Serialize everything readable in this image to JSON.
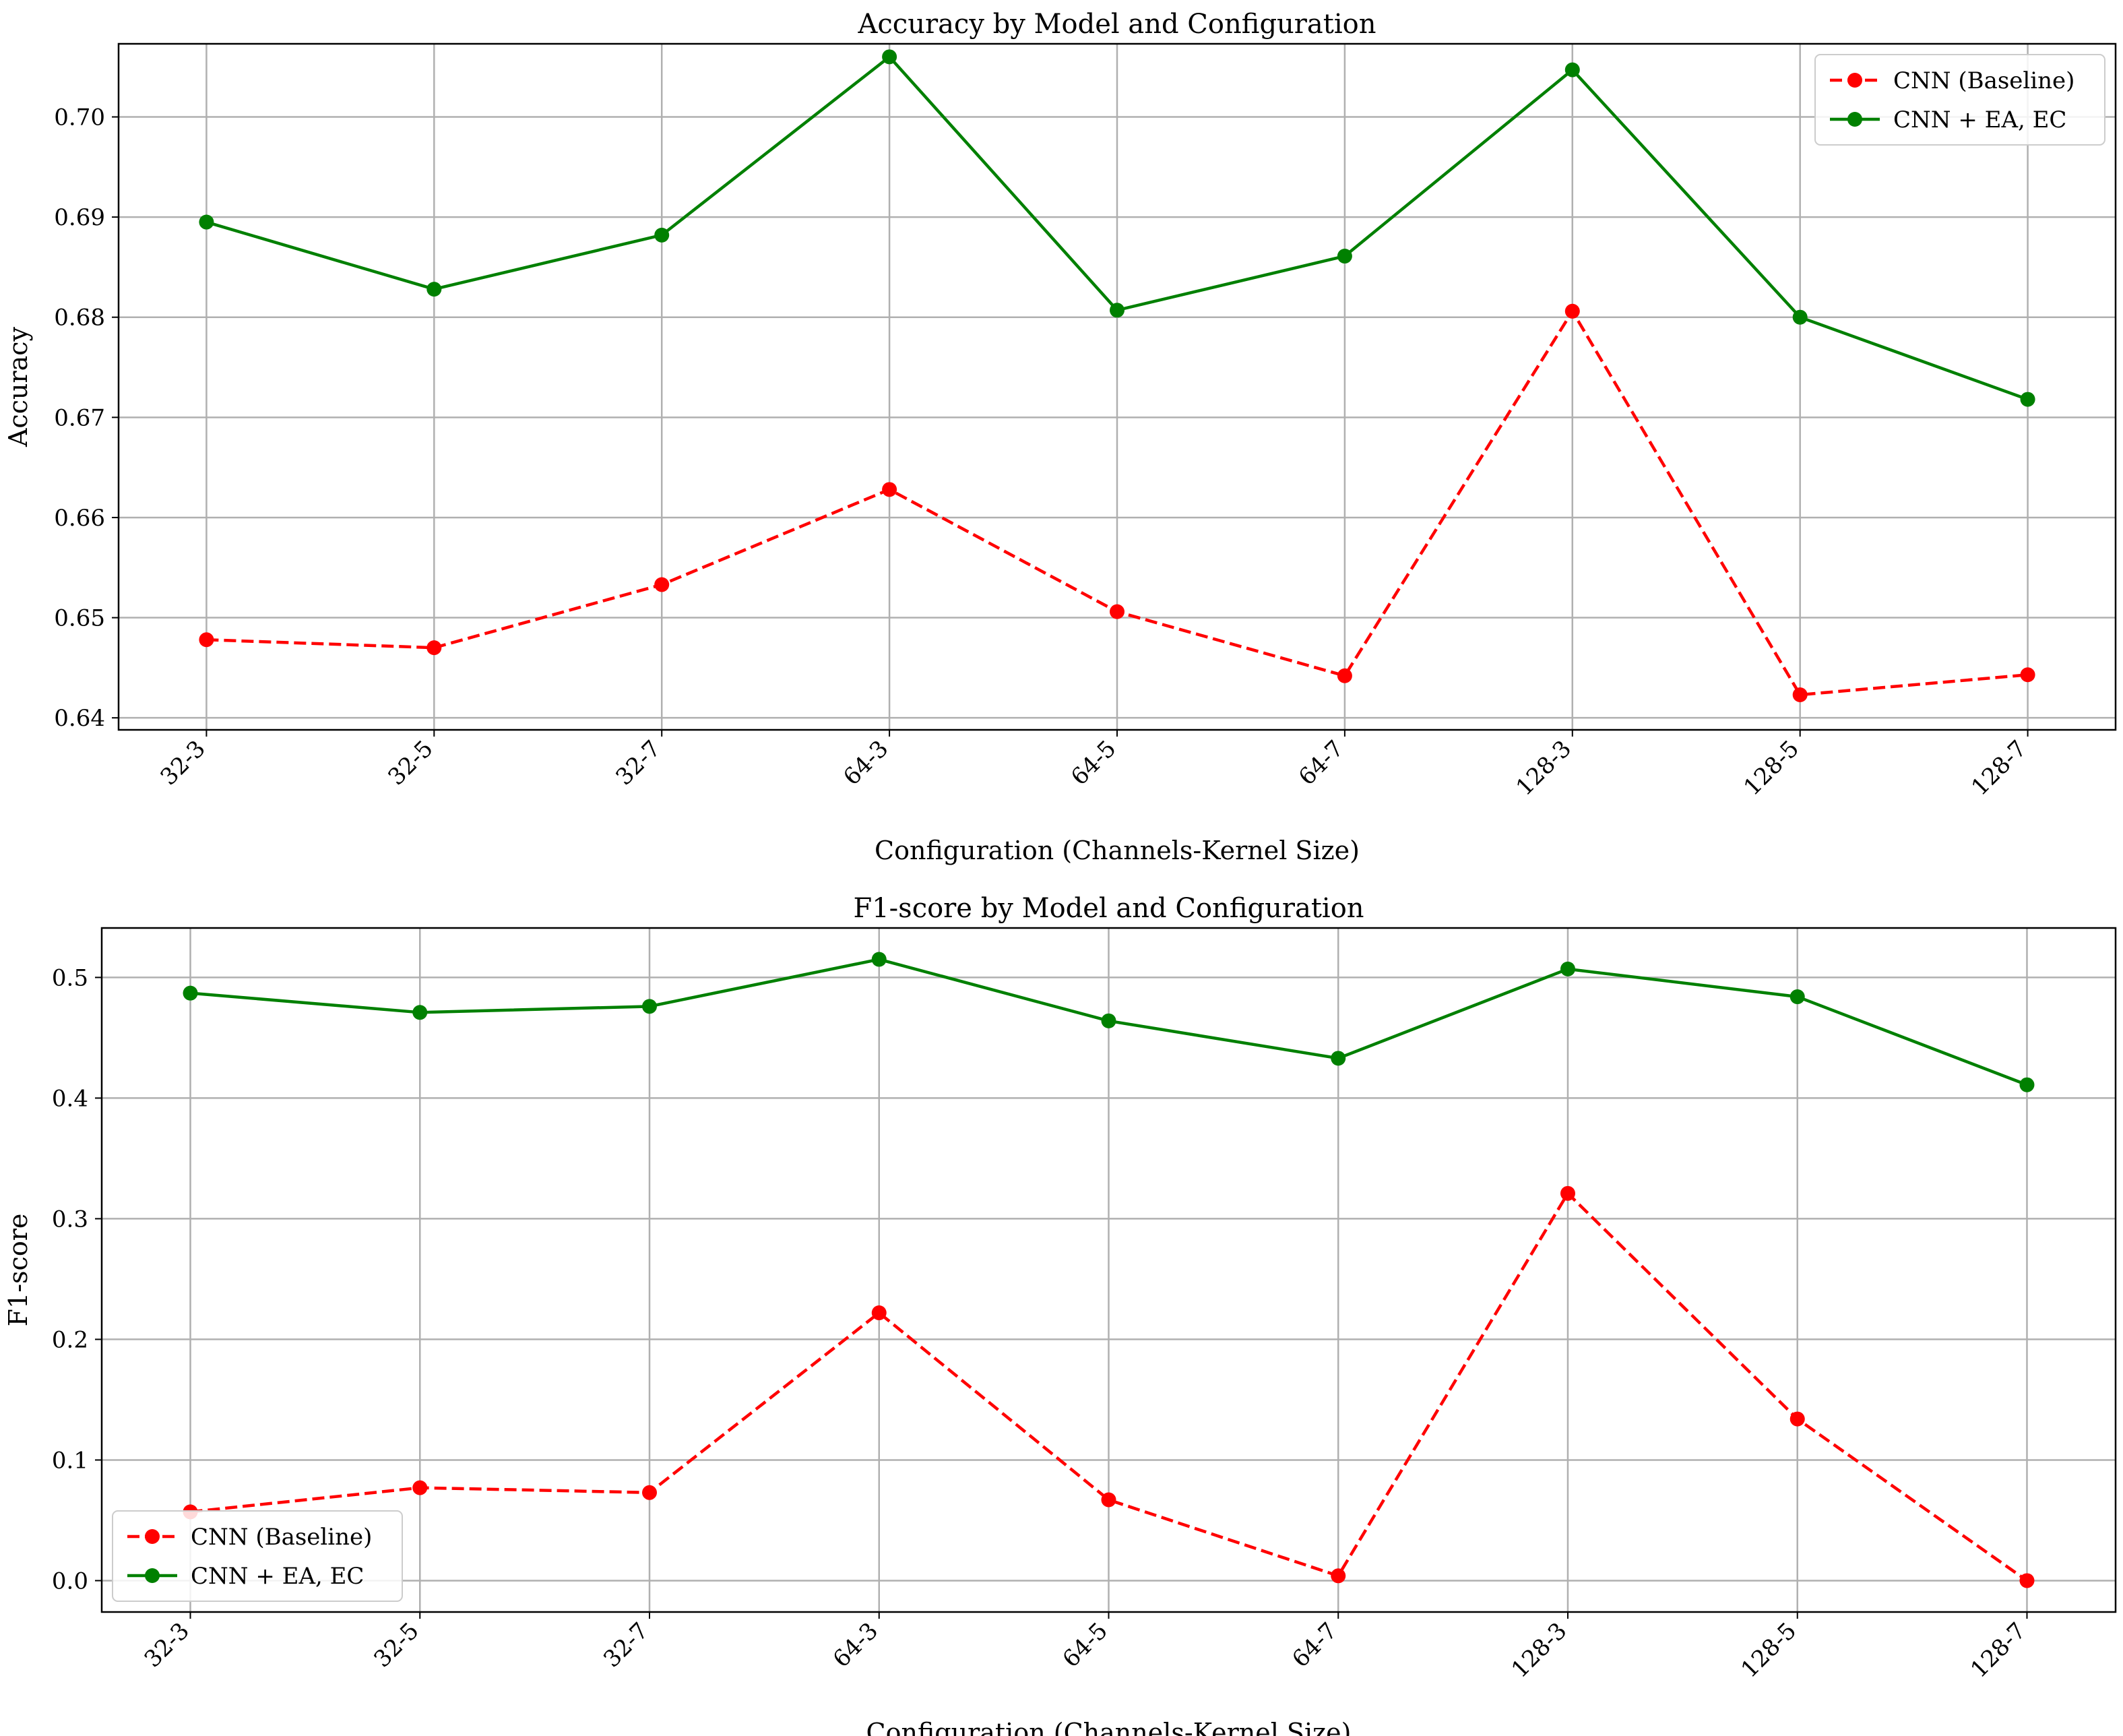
{
  "chart_data": [
    {
      "type": "line",
      "title": "Accuracy by Model and Configuration",
      "xlabel": "Configuration (Channels-Kernel Size)",
      "ylabel": "Accuracy",
      "categories": [
        "32-3",
        "32-5",
        "32-7",
        "64-3",
        "64-5",
        "64-7",
        "128-3",
        "128-5",
        "128-7"
      ],
      "ylim": [
        0.6388,
        0.7073
      ],
      "yticks": [
        0.64,
        0.65,
        0.66,
        0.67,
        0.68,
        0.69,
        0.7
      ],
      "ytick_labels": [
        "0.64",
        "0.65",
        "0.66",
        "0.67",
        "0.68",
        "0.69",
        "0.70"
      ],
      "grid": true,
      "legend_position": "upper right",
      "series": [
        {
          "name": "CNN (Baseline)",
          "color": "#ff0000",
          "linestyle": "dashed",
          "marker": "circle",
          "values": [
            0.6478,
            0.647,
            0.6533,
            0.6628,
            0.6506,
            0.6442,
            0.6806,
            0.6423,
            0.6443
          ]
        },
        {
          "name": "CNN + EA, EC",
          "color": "#008000",
          "linestyle": "solid",
          "marker": "circle",
          "values": [
            0.6895,
            0.6828,
            0.6882,
            0.706,
            0.6807,
            0.6861,
            0.7047,
            0.68,
            0.6718
          ]
        }
      ]
    },
    {
      "type": "line",
      "title": "F1-score by Model and Configuration",
      "xlabel": "Configuration (Channels-Kernel Size)",
      "ylabel": "F1-score",
      "categories": [
        "32-3",
        "32-5",
        "32-7",
        "64-3",
        "64-5",
        "64-7",
        "128-3",
        "128-5",
        "128-7"
      ],
      "ylim": [
        -0.026,
        0.541
      ],
      "yticks": [
        0.0,
        0.1,
        0.2,
        0.3,
        0.4,
        0.5
      ],
      "ytick_labels": [
        "0.0",
        "0.1",
        "0.2",
        "0.3",
        "0.4",
        "0.5"
      ],
      "grid": true,
      "legend_position": "lower left",
      "series": [
        {
          "name": "CNN (Baseline)",
          "color": "#ff0000",
          "linestyle": "dashed",
          "marker": "circle",
          "values": [
            0.057,
            0.077,
            0.073,
            0.222,
            0.067,
            0.004,
            0.321,
            0.134,
            0.0
          ]
        },
        {
          "name": "CNN + EA, EC",
          "color": "#008000",
          "linestyle": "solid",
          "marker": "circle",
          "values": [
            0.487,
            0.471,
            0.476,
            0.515,
            0.464,
            0.433,
            0.507,
            0.484,
            0.411
          ]
        }
      ]
    }
  ]
}
